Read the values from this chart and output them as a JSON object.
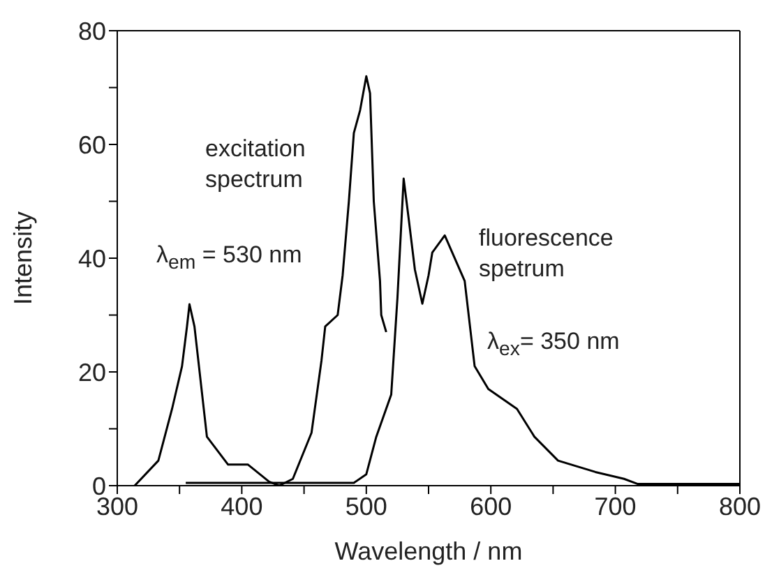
{
  "chart_data": {
    "type": "line",
    "xlabel": "Wavelength / nm",
    "ylabel": "Intensity",
    "xlim": [
      300,
      800
    ],
    "ylim": [
      0,
      80
    ],
    "xticks": [
      300,
      {
        "value": 350,
        "label": null
      },
      400,
      {
        "value": 450,
        "label": null
      },
      500,
      {
        "value": 550,
        "label": null
      },
      600,
      {
        "value": 650,
        "label": null
      },
      700,
      {
        "value": 750,
        "label": null
      },
      800
    ],
    "yticks": [
      0,
      {
        "value": 10,
        "label": null
      },
      20,
      {
        "value": 30,
        "label": null
      },
      40,
      {
        "value": 50,
        "label": null
      },
      60,
      {
        "value": 70,
        "label": null
      },
      80
    ],
    "marker": "none",
    "line_style": "solid",
    "annotations": [
      "excitation spectrum",
      "λ$_{em}$ = 530 nm",
      "fluorescence spetrum",
      "λ$_{ex}$= 350 nm"
    ],
    "series": [
      {
        "color": "#000000",
        "x": [
          314,
          333,
          344,
          352,
          356,
          358,
          362,
          372,
          389,
          405,
          422,
          430,
          441,
          456,
          464,
          467,
          477,
          481,
          486,
          490,
          495,
          500,
          503,
          506,
          511,
          512,
          516
        ],
        "values": [
          0,
          4.4,
          13.5,
          21,
          28,
          31.9,
          28,
          8.6,
          3.7,
          3.7,
          0.7,
          0,
          1.2,
          9.3,
          22,
          28,
          30,
          37,
          50,
          62,
          66,
          72,
          69,
          50,
          36,
          30,
          27
        ]
      },
      {
        "color": "#000000",
        "x": [
          355,
          490,
          500,
          508,
          520,
          525,
          530,
          534,
          539,
          545,
          550,
          553,
          563,
          579,
          587,
          598,
          621,
          635,
          654,
          684,
          707,
          718,
          800
        ],
        "values": [
          0.5,
          0.5,
          2,
          8.6,
          16,
          33,
          54,
          47,
          38,
          32,
          37,
          41,
          44,
          36,
          21,
          17,
          13.5,
          8.6,
          4.4,
          2.4,
          1.2,
          0.3,
          0.3
        ]
      }
    ]
  }
}
